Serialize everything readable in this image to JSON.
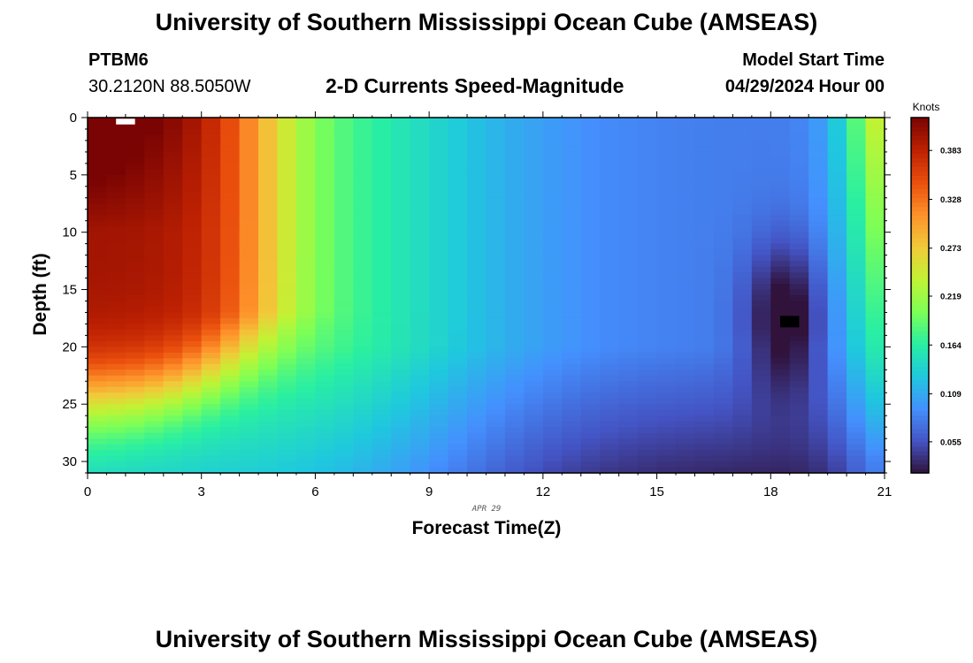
{
  "header": {
    "title": "University of Southern Mississippi Ocean Cube (AMSEAS)",
    "station": "PTBM6",
    "location": "30.2120N  88.5050W",
    "plot_title": "2-D Currents Speed-Magnitude",
    "model_start_label": "Model Start Time",
    "model_start_value": "04/29/2024 Hour 00"
  },
  "footer": {
    "title": "University of Southern Mississippi Ocean Cube (AMSEAS)"
  },
  "colors": {
    "colormap": [
      "#30123b",
      "#4454c4",
      "#4490fe",
      "#1fc8de",
      "#29efa2",
      "#7dff56",
      "#c1f334",
      "#f1ca3a",
      "#fe922a",
      "#ea4f0d",
      "#be2102",
      "#7a0403"
    ]
  },
  "chart_data": {
    "type": "heatmap",
    "title": "2-D Currents Speed-Magnitude",
    "xlabel": "Forecast Time(Z)",
    "ylabel": "Depth (ft)",
    "x_sublabel": "APR 29",
    "xlim": [
      0,
      21
    ],
    "ylim": [
      0,
      31
    ],
    "x_ticks": [
      0,
      3,
      6,
      9,
      12,
      15,
      18,
      21
    ],
    "y_ticks": [
      0,
      5,
      10,
      15,
      20,
      25,
      30
    ],
    "colorbar": {
      "label": "Knots",
      "range": [
        0.02,
        0.42
      ],
      "ticks": [
        0.055,
        0.109,
        0.164,
        0.219,
        0.273,
        0.328,
        0.383
      ]
    },
    "cell_dx_hours": 0.5,
    "cell_dy_ft": 0.5,
    "description_points": [
      {
        "x": 0.5,
        "y": 1,
        "value": 0.41
      },
      {
        "x": 2,
        "y": 15,
        "value": 0.35
      },
      {
        "x": 5,
        "y": 5,
        "value": 0.27
      },
      {
        "x": 8,
        "y": 15,
        "value": 0.18
      },
      {
        "x": 12,
        "y": 30,
        "value": 0.09
      },
      {
        "x": 18.5,
        "y": 18,
        "value": 0.02
      },
      {
        "x": 20.8,
        "y": 2,
        "value": 0.24
      }
    ]
  }
}
